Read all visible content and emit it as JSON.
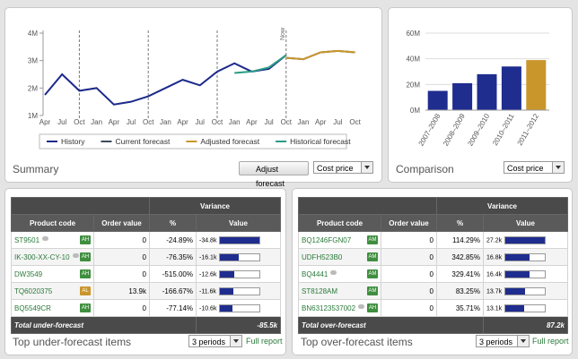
{
  "chart_data": [
    {
      "type": "line",
      "categories": [
        "Apr",
        "Jul",
        "Oct",
        "Jan",
        "Apr",
        "Jul",
        "Oct",
        "Jan",
        "Apr",
        "Jul",
        "Oct",
        "Jan",
        "Apr",
        "Jul",
        "Oct",
        "Jan",
        "Apr",
        "Jul",
        "Oct"
      ],
      "annotation": "Now",
      "series": [
        {
          "name": "History",
          "color": "#1c2a8a",
          "values": [
            1.75,
            2.5,
            1.9,
            2.0,
            1.4,
            1.5,
            1.7,
            2.0,
            2.3,
            2.1,
            2.6,
            2.9,
            2.6,
            2.7,
            3.2,
            null,
            null,
            null,
            null
          ]
        },
        {
          "name": "Current forecast",
          "color": "#3c4a5c",
          "values": [
            null,
            null,
            null,
            null,
            null,
            null,
            null,
            null,
            null,
            null,
            null,
            null,
            null,
            null,
            3.1,
            3.05,
            3.3,
            3.35,
            3.3
          ]
        },
        {
          "name": "Adjusted forecast",
          "color": "#c9962b",
          "values": [
            null,
            null,
            null,
            null,
            null,
            null,
            null,
            null,
            null,
            null,
            null,
            null,
            null,
            null,
            3.1,
            3.05,
            3.3,
            3.35,
            3.3
          ]
        },
        {
          "name": "Historical forecast",
          "color": "#2a9c84",
          "values": [
            null,
            null,
            null,
            null,
            null,
            null,
            null,
            null,
            null,
            null,
            null,
            2.55,
            2.6,
            2.75,
            3.2,
            null,
            null,
            null,
            null
          ]
        }
      ],
      "ylim": [
        1,
        4
      ],
      "yticks": [
        {
          "value": 1,
          "label": "1M"
        },
        {
          "value": 2,
          "label": "2M"
        },
        {
          "value": 3,
          "label": "3M"
        },
        {
          "value": 4,
          "label": "4M"
        }
      ]
    },
    {
      "type": "bar",
      "categories": [
        "2007–2008",
        "2008–2009",
        "2009–2010",
        "2010–2011",
        "2011–2012"
      ],
      "values": [
        15,
        21,
        28,
        34,
        39
      ],
      "colors": [
        "#1f2d8f",
        "#1f2d8f",
        "#1f2d8f",
        "#1f2d8f",
        "#c9962b"
      ],
      "ylim": [
        0,
        60
      ],
      "yticks": [
        {
          "value": 0,
          "label": "0M"
        },
        {
          "value": 20,
          "label": "20M"
        },
        {
          "value": 40,
          "label": "40M"
        },
        {
          "value": 60,
          "label": "60M"
        }
      ],
      "grid": true
    }
  ],
  "summary": {
    "title": "Summary",
    "button": "Adjust forecast",
    "select": "Cost price"
  },
  "comparison": {
    "title": "Comparison",
    "select": "Cost price"
  },
  "under": {
    "title": "Top under-forecast items",
    "group": "Variance",
    "columns": [
      "Product code",
      "Order value",
      "%",
      "Value"
    ],
    "rows": [
      {
        "code": "ST9501",
        "tag": "AH",
        "order": "0",
        "pct": "-24.89%",
        "value": "-34.8k",
        "comment": true
      },
      {
        "code": "IK-300-XX-CY-10",
        "tag": "AH",
        "order": "0",
        "pct": "-76.35%",
        "value": "-16.1k",
        "comment": true
      },
      {
        "code": "DW3549",
        "tag": "AH",
        "order": "0",
        "pct": "-515.00%",
        "value": "-12.6k",
        "comment": false
      },
      {
        "code": "TQ6020375",
        "tag": "AL",
        "order": "13.9k",
        "pct": "-166.67%",
        "value": "-11.6k",
        "comment": false
      },
      {
        "code": "BQ5549CR",
        "tag": "AH",
        "order": "0",
        "pct": "-77.14%",
        "value": "-10.6k",
        "comment": false
      }
    ],
    "total_label": "Total under-forecast",
    "total": "-85.5k",
    "periods": "3 periods",
    "link": "Full report"
  },
  "over": {
    "title": "Top over-forecast items",
    "group": "Variance",
    "columns": [
      "Product code",
      "Order value",
      "%",
      "Value"
    ],
    "rows": [
      {
        "code": "BQ1246FGN07",
        "tag": "AM",
        "order": "0",
        "pct": "114.29%",
        "value": "27.2k",
        "comment": false
      },
      {
        "code": "UDFH523B0",
        "tag": "AM",
        "order": "0",
        "pct": "342.85%",
        "value": "16.8k",
        "comment": false
      },
      {
        "code": "BQ4441",
        "tag": "AM",
        "order": "0",
        "pct": "329.41%",
        "value": "16.4k",
        "comment": true
      },
      {
        "code": "ST8128AM",
        "tag": "AM",
        "order": "0",
        "pct": "83.25%",
        "value": "13.7k",
        "comment": false
      },
      {
        "code": "BN63123537002",
        "tag": "AH",
        "order": "0",
        "pct": "35.71%",
        "value": "13.1k",
        "comment": true
      }
    ],
    "total_label": "Total over-forecast",
    "total": "87.2k",
    "periods": "3 periods",
    "link": "Full report"
  }
}
